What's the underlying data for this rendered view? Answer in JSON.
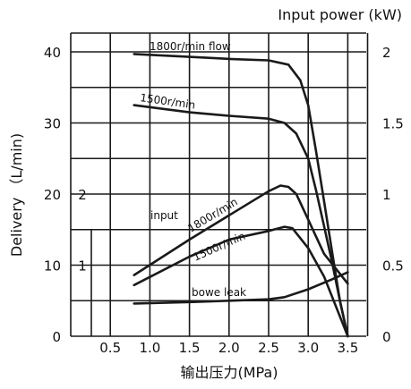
{
  "chart_data": {
    "type": "line",
    "title": "",
    "xlabel": "输出压力(MPa)",
    "ylabel": "Delivery （L/min)",
    "y2label": "Input power (kW)",
    "xlim": [
      0,
      3.75
    ],
    "ylim": [
      0,
      42
    ],
    "y2lim": [
      0,
      2.1
    ],
    "grid": true,
    "x_ticks": [
      0.5,
      1.0,
      1.5,
      2.0,
      2.5,
      3.0,
      3.5
    ],
    "x_tick_labels": [
      "0.5",
      "1.0",
      "1.5",
      "2.0",
      "2.5",
      "3.0",
      "3.5"
    ],
    "y_ticks": [
      0,
      10,
      20,
      30,
      40
    ],
    "y_tick_labels": [
      "0",
      "10",
      "20",
      "30",
      "40"
    ],
    "y2_ticks": [
      0,
      0.5,
      1,
      1.5,
      2
    ],
    "y2_tick_labels": [
      "0",
      "0.5",
      "1",
      "1.5",
      "2"
    ],
    "y3_ticks": [
      1,
      2
    ],
    "y3_tick_labels": [
      "1",
      "2"
    ],
    "annotations": [
      "input"
    ],
    "series": [
      {
        "name": "1800r/min flow",
        "axis": "left",
        "x": [
          0.8,
          1.5,
          2.0,
          2.5,
          2.75,
          2.9,
          3.0,
          3.1,
          3.2,
          3.3,
          3.4,
          3.5
        ],
        "values": [
          39.7,
          39.3,
          39.0,
          38.8,
          38.2,
          36.0,
          32.5,
          26.0,
          19.0,
          12.0,
          5.0,
          0.0
        ]
      },
      {
        "name": "1500r/min",
        "axis": "left",
        "x": [
          0.8,
          1.5,
          2.0,
          2.5,
          2.7,
          2.85,
          3.0,
          3.1,
          3.2,
          3.3,
          3.4,
          3.5
        ],
        "values": [
          32.5,
          31.5,
          31.0,
          30.6,
          30.0,
          28.5,
          25.0,
          20.5,
          15.5,
          10.5,
          5.0,
          0.0
        ]
      },
      {
        "name": "1800r/min",
        "axis": "right",
        "x": [
          0.8,
          1.5,
          2.0,
          2.5,
          2.65,
          2.75,
          2.85,
          3.0,
          3.2,
          3.5
        ],
        "values": [
          0.43,
          0.68,
          0.85,
          1.02,
          1.06,
          1.05,
          1.0,
          0.82,
          0.58,
          0.37
        ]
      },
      {
        "name": "1500r/min",
        "axis": "right",
        "x": [
          0.8,
          1.5,
          2.0,
          2.5,
          2.7,
          2.8,
          3.0,
          3.2,
          3.5
        ],
        "values": [
          0.36,
          0.56,
          0.68,
          0.74,
          0.77,
          0.76,
          0.62,
          0.42,
          0.0
        ]
      },
      {
        "name": "bowe leak",
        "axis": "left",
        "x": [
          0.8,
          1.5,
          2.0,
          2.5,
          2.7,
          3.0,
          3.3,
          3.5
        ],
        "values": [
          4.6,
          4.8,
          5.0,
          5.2,
          5.5,
          6.6,
          8.0,
          9.0
        ]
      }
    ]
  }
}
